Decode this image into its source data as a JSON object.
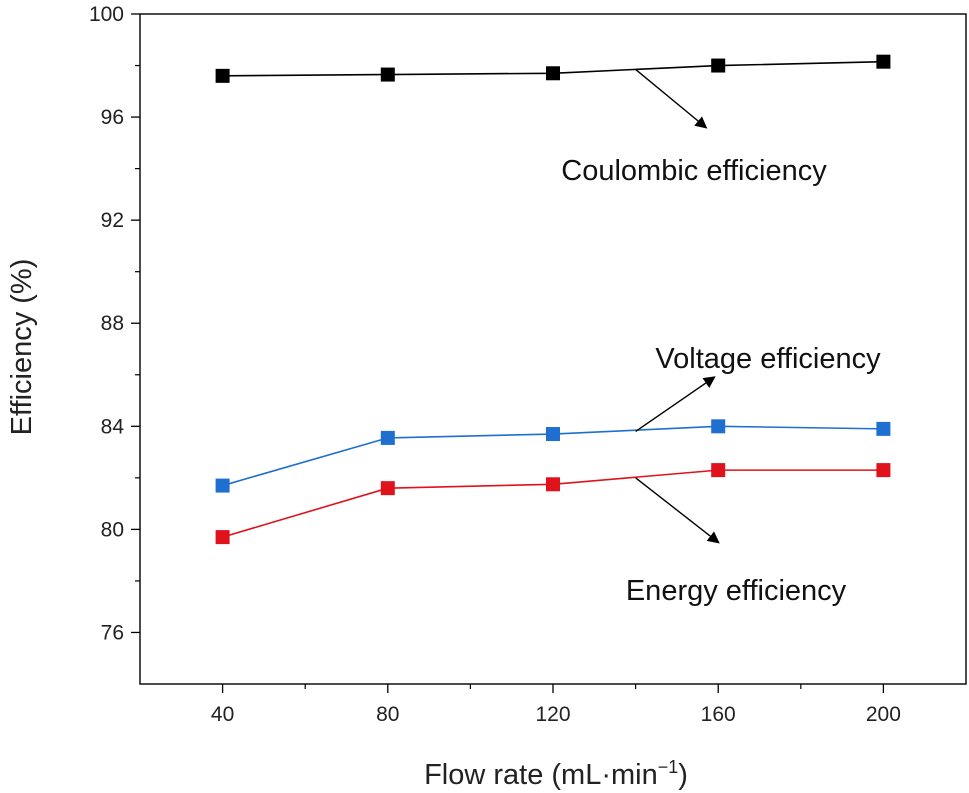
{
  "chart_data": {
    "type": "line",
    "title": "",
    "xlabel": "Flow rate (mL·min",
    "xlabel_superscript": "−1",
    "xlabel_close": ")",
    "ylabel": "Efficiency (%)",
    "xlim": [
      20,
      220
    ],
    "ylim": [
      74,
      100
    ],
    "x_major_ticks": [
      40,
      80,
      120,
      160,
      200
    ],
    "x_tick_labels": [
      "40",
      "80",
      "120",
      "160",
      "200"
    ],
    "y_major_ticks": [
      76,
      80,
      84,
      88,
      92,
      96,
      100
    ],
    "y_tick_labels": [
      "76",
      "80",
      "84",
      "88",
      "92",
      "96",
      "100"
    ],
    "grid": false,
    "legend": "none",
    "x": [
      40,
      80,
      120,
      160,
      200
    ],
    "series": [
      {
        "name": "Coulombic efficiency",
        "color": "#000000",
        "values": [
          97.6,
          97.65,
          97.7,
          98.0,
          98.15
        ]
      },
      {
        "name": "Voltage efficiency",
        "color": "#1f6fd1",
        "values": [
          81.7,
          83.55,
          83.7,
          84.0,
          83.9
        ]
      },
      {
        "name": "Energy efficiency",
        "color": "#e0121b",
        "values": [
          79.7,
          81.6,
          81.75,
          82.3,
          82.3
        ]
      }
    ],
    "annotations": [
      {
        "text": "Coulombic efficiency",
        "series": 0,
        "anchor_x": 140,
        "anchor_y": 97.85,
        "head_x": 157,
        "head_y": 95.6
      },
      {
        "text": "Voltage efficiency",
        "series": 1,
        "anchor_x": 140,
        "anchor_y": 83.8,
        "head_x": 159,
        "head_y": 85.9
      },
      {
        "text": "Energy efficiency",
        "series": 2,
        "anchor_x": 140,
        "anchor_y": 82.0,
        "head_x": 160,
        "head_y": 79.5
      }
    ]
  }
}
